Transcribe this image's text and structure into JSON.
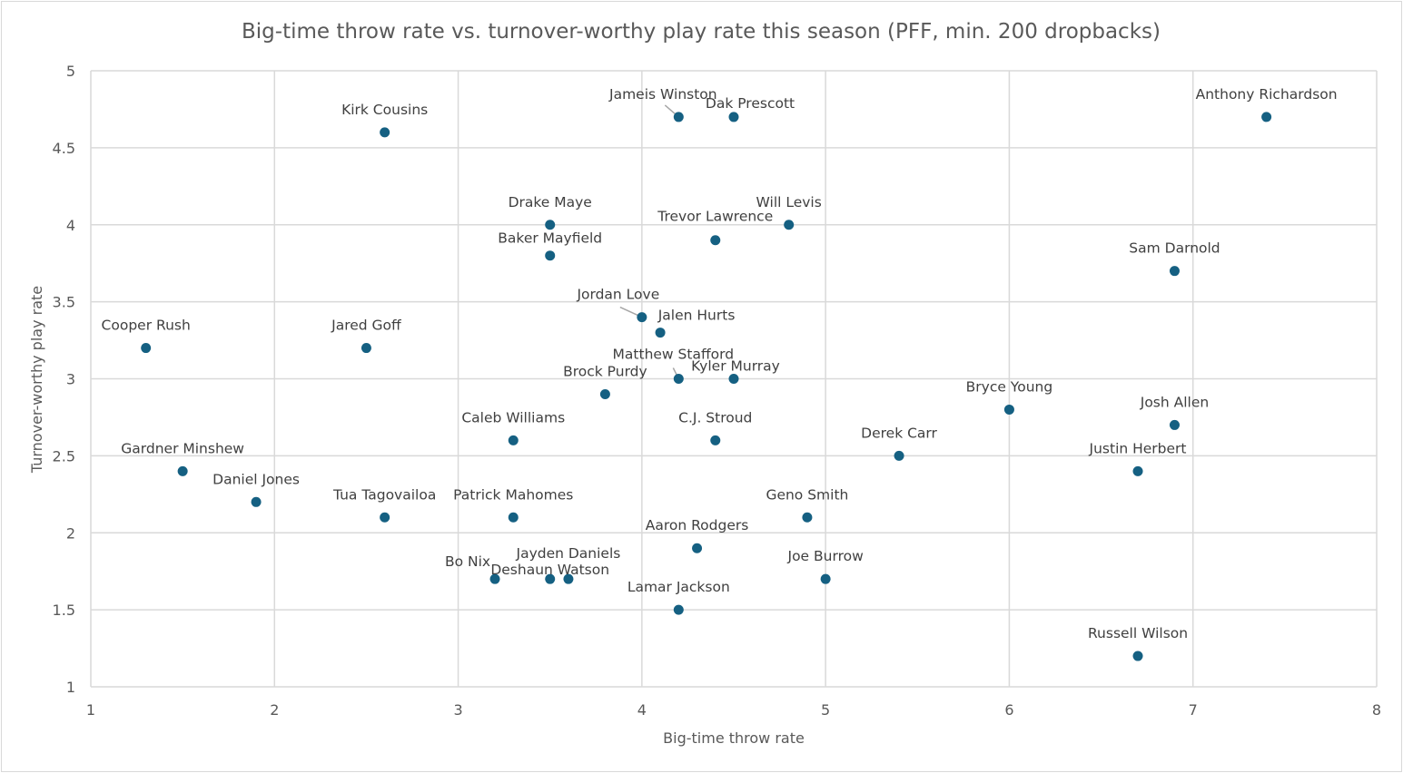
{
  "chart_data": {
    "type": "scatter",
    "title": "Big-time throw rate vs. turnover-worthy play rate this season (PFF, min. 200 dropbacks)",
    "xlabel": "Big-time throw rate",
    "ylabel": "Turnover-worthy play rate",
    "xlim": [
      1,
      8
    ],
    "ylim": [
      1,
      5
    ],
    "xticks": [
      1,
      2,
      3,
      4,
      5,
      6,
      7,
      8
    ],
    "yticks": [
      1,
      1.5,
      2,
      2.5,
      3,
      3.5,
      4,
      4.5,
      5
    ],
    "grid": true,
    "legend": "none",
    "marker_color": "#156082",
    "points": [
      {
        "name": "Anthony Richardson",
        "x": 7.4,
        "y": 4.7
      },
      {
        "name": "Kirk Cousins",
        "x": 2.6,
        "y": 4.6
      },
      {
        "name": "Jameis Winston",
        "x": 4.2,
        "y": 4.7
      },
      {
        "name": "Dak Prescott",
        "x": 4.5,
        "y": 4.7
      },
      {
        "name": "Drake Maye",
        "x": 3.5,
        "y": 4.0
      },
      {
        "name": "Will Levis",
        "x": 4.8,
        "y": 4.0
      },
      {
        "name": "Trevor Lawrence",
        "x": 4.4,
        "y": 3.9
      },
      {
        "name": "Baker Mayfield",
        "x": 3.5,
        "y": 3.8
      },
      {
        "name": "Sam Darnold",
        "x": 6.9,
        "y": 3.7
      },
      {
        "name": "Jordan Love",
        "x": 4.0,
        "y": 3.4
      },
      {
        "name": "Jalen Hurts",
        "x": 4.1,
        "y": 3.3
      },
      {
        "name": "Cooper Rush",
        "x": 1.3,
        "y": 3.2
      },
      {
        "name": "Jared Goff",
        "x": 2.5,
        "y": 3.2
      },
      {
        "name": "Matthew Stafford",
        "x": 4.2,
        "y": 3.0
      },
      {
        "name": "Kyler Murray",
        "x": 4.5,
        "y": 3.0
      },
      {
        "name": "Brock Purdy",
        "x": 3.8,
        "y": 2.9
      },
      {
        "name": "Bryce Young",
        "x": 6.0,
        "y": 2.8
      },
      {
        "name": "Josh Allen",
        "x": 6.9,
        "y": 2.7
      },
      {
        "name": "Caleb Williams",
        "x": 3.3,
        "y": 2.6
      },
      {
        "name": "C.J. Stroud",
        "x": 4.4,
        "y": 2.6
      },
      {
        "name": "Derek Carr",
        "x": 5.4,
        "y": 2.5
      },
      {
        "name": "Gardner Minshew",
        "x": 1.5,
        "y": 2.4
      },
      {
        "name": "Justin Herbert",
        "x": 6.7,
        "y": 2.4
      },
      {
        "name": "Daniel Jones",
        "x": 1.9,
        "y": 2.2
      },
      {
        "name": "Tua Tagovailoa",
        "x": 2.6,
        "y": 2.1
      },
      {
        "name": "Patrick Mahomes",
        "x": 3.3,
        "y": 2.1
      },
      {
        "name": "Geno Smith",
        "x": 4.9,
        "y": 2.1
      },
      {
        "name": "Aaron Rodgers",
        "x": 4.3,
        "y": 1.9
      },
      {
        "name": "Bo Nix",
        "x": 3.2,
        "y": 1.7
      },
      {
        "name": "Deshaun Watson",
        "x": 3.5,
        "y": 1.7
      },
      {
        "name": "Jayden Daniels",
        "x": 3.6,
        "y": 1.7
      },
      {
        "name": "Joe Burrow",
        "x": 5.0,
        "y": 1.7
      },
      {
        "name": "Lamar Jackson",
        "x": 4.2,
        "y": 1.5
      },
      {
        "name": "Russell Wilson",
        "x": 6.7,
        "y": 1.2
      }
    ]
  }
}
